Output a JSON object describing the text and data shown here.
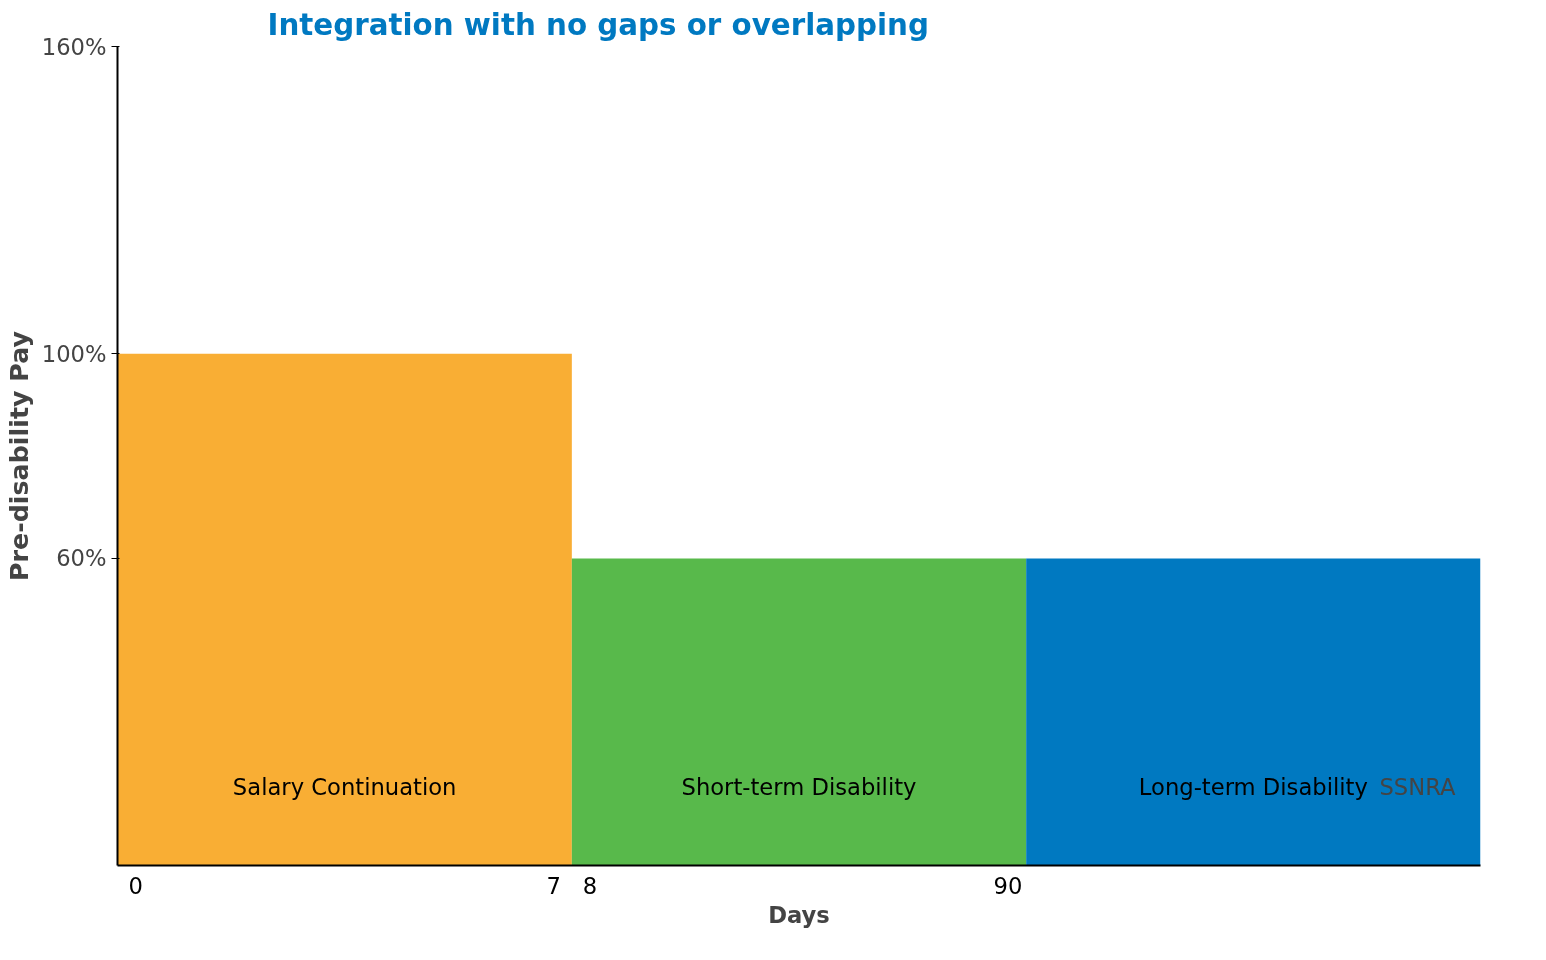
{
  "chart_data": {
    "type": "bar",
    "title": "Integration with no gaps or overlapping",
    "xlabel": "Days",
    "ylabel": "Pre-disability Pay",
    "categories": [
      "Salary Continuation",
      "Short-term Disability",
      "Long-term Disability"
    ],
    "values": [
      100,
      60,
      60
    ],
    "colors": [
      "#f9ae34",
      "#58b94b",
      "#0079c1"
    ],
    "ylim": [
      0,
      160
    ],
    "yticks": [
      {
        "value": 60,
        "label": "60%"
      },
      {
        "value": 100,
        "label": "100%"
      },
      {
        "value": 160,
        "label": "160%"
      }
    ],
    "annotations": [
      "0",
      "7",
      "8",
      "90",
      "SSNRA"
    ],
    "grid": false
  }
}
